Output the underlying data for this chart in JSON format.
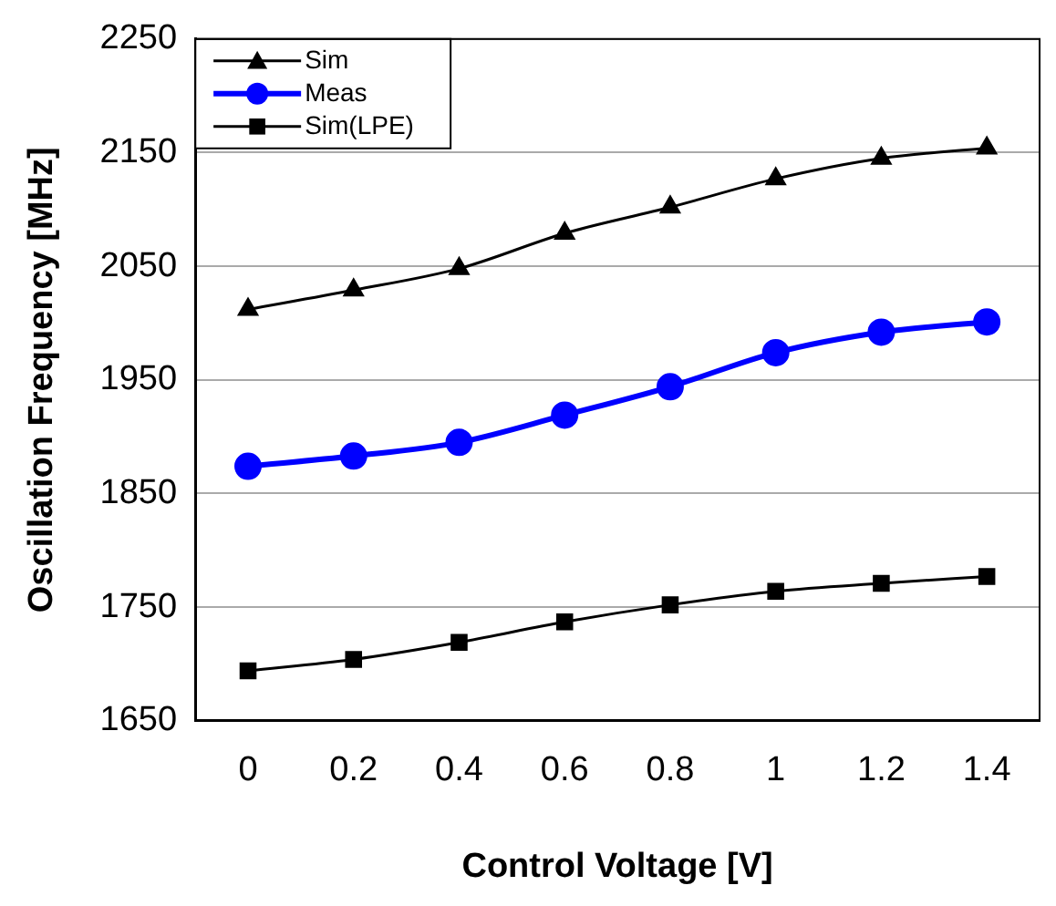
{
  "chart_data": {
    "type": "line",
    "xlabel": "Control Voltage [V]",
    "ylabel": "Oscillation Frequency [MHz]",
    "categories": [
      "0",
      "0.2",
      "0.4",
      "0.6",
      "0.8",
      "1",
      "1.2",
      "1.4"
    ],
    "series": [
      {
        "name": "Sim",
        "color": "#000000",
        "marker": "triangle",
        "values": [
          2012,
          2029,
          2048,
          2079,
          2102,
          2127,
          2145,
          2154
        ]
      },
      {
        "name": "Meas",
        "color": "#0000ff",
        "marker": "circle",
        "values": [
          1874,
          1883,
          1895,
          1919,
          1944,
          1974,
          1992,
          2001
        ]
      },
      {
        "name": "Sim(LPE)",
        "color": "#000000",
        "marker": "square",
        "values": [
          1694,
          1704,
          1719,
          1737,
          1752,
          1764,
          1771,
          1777
        ]
      }
    ],
    "ylim": [
      1650,
      2250
    ],
    "yticks": [
      1650,
      1750,
      1850,
      1950,
      2050,
      2150,
      2250
    ],
    "grid": "y",
    "legend": "top left"
  }
}
